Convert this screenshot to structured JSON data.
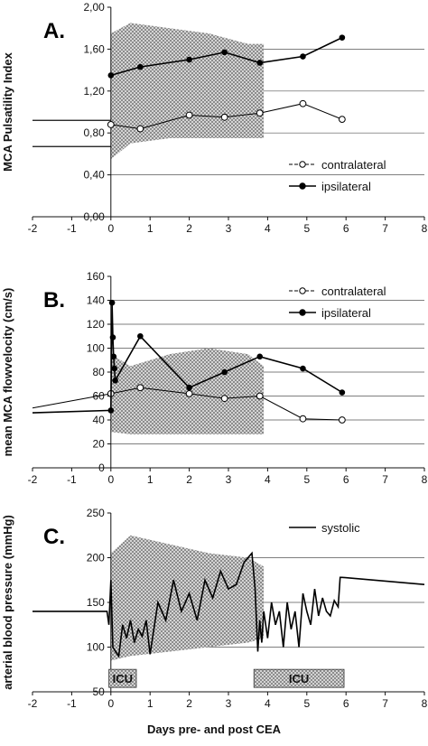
{
  "figure": {
    "shared_xlabel": "Days pre- and post CEA"
  },
  "chart_data": [
    {
      "panel": "A.",
      "type": "line",
      "ylabel": "MCA Pulsatility Index",
      "xlim": [
        -2,
        8
      ],
      "ylim": [
        0,
        2
      ],
      "xticks": [
        "-2",
        "-1",
        "0",
        "1",
        "2",
        "3",
        "4",
        "5",
        "6",
        "7",
        "8"
      ],
      "yticks": [
        "0,00",
        "0,40",
        "0,80",
        "1,20",
        "1,60",
        "2,00"
      ],
      "grid": "horizontal",
      "legend_position": "bottom-right",
      "series": [
        {
          "name": "contralateral",
          "marker": "open-circle",
          "x": [
            0,
            0.75,
            2,
            2.9,
            3.8,
            4.9,
            5.9
          ],
          "y": [
            0.88,
            0.84,
            0.97,
            0.95,
            0.99,
            1.08,
            0.93
          ]
        },
        {
          "name": "ipsilateral",
          "marker": "filled-circle",
          "x": [
            0,
            0.75,
            2,
            2.9,
            3.8,
            4.9,
            5.9
          ],
          "y": [
            1.35,
            1.43,
            1.5,
            1.57,
            1.47,
            1.53,
            1.71
          ]
        }
      ],
      "band": {
        "x": [
          0,
          0.5,
          1.5,
          2.5,
          3.5,
          3.9
        ],
        "lower": [
          0.55,
          0.7,
          0.75,
          0.75,
          0.75,
          0.75
        ],
        "upper": [
          1.75,
          1.85,
          1.8,
          1.75,
          1.65,
          1.65
        ]
      },
      "baselines": [
        {
          "from_x": -2,
          "to_x": 0,
          "y": 0.92
        },
        {
          "from_x": -2,
          "to_x": 0,
          "y": 0.67
        }
      ]
    },
    {
      "panel": "B.",
      "type": "line",
      "ylabel": "mean MCA flowvelocity (cm/s)",
      "xlim": [
        -2,
        8
      ],
      "ylim": [
        0,
        160
      ],
      "xticks": [
        "-2",
        "-1",
        "0",
        "1",
        "2",
        "3",
        "4",
        "5",
        "6",
        "7",
        "8"
      ],
      "yticks": [
        "0",
        "20",
        "40",
        "60",
        "80",
        "100",
        "120",
        "140",
        "160"
      ],
      "grid": "horizontal",
      "legend_position": "top-right",
      "series": [
        {
          "name": "contralateral",
          "marker": "open-circle",
          "x": [
            -2,
            0,
            0.75,
            2,
            2.9,
            3.8,
            4.9,
            5.9
          ],
          "y": [
            50,
            62,
            67,
            62,
            58,
            60,
            41,
            40
          ]
        },
        {
          "name": "ipsilateral",
          "marker": "filled-circle",
          "x": [
            -2,
            0,
            0.03,
            0.05,
            0.07,
            0.09,
            0.11,
            0.75,
            2,
            2.9,
            3.8,
            4.9,
            5.9
          ],
          "y": [
            46,
            48,
            138,
            109,
            93,
            83,
            73,
            110,
            67,
            80,
            93,
            83,
            63
          ]
        }
      ],
      "band": {
        "x": [
          0,
          0.5,
          1.5,
          2.5,
          3.5,
          3.9
        ],
        "lower": [
          30,
          28,
          28,
          28,
          28,
          28
        ],
        "upper": [
          95,
          85,
          95,
          100,
          95,
          85
        ]
      }
    },
    {
      "panel": "C.",
      "type": "line",
      "ylabel": "arterial blood pressure (mmHg)",
      "xlim": [
        -2,
        8
      ],
      "ylim": [
        50,
        250
      ],
      "xticks": [
        "-2",
        "-1",
        "0",
        "1",
        "2",
        "3",
        "4",
        "5",
        "6",
        "7",
        "8"
      ],
      "yticks": [
        "50",
        "100",
        "150",
        "200",
        "250"
      ],
      "grid": "horizontal",
      "legend_position": "top-right",
      "series": [
        {
          "name": "systolic",
          "marker": "none",
          "x": [
            -2,
            -0.1,
            -0.05,
            0,
            0.05,
            0.12,
            0.2,
            0.3,
            0.4,
            0.5,
            0.6,
            0.7,
            0.8,
            0.9,
            1.0,
            1.2,
            1.4,
            1.6,
            1.8,
            2.0,
            2.2,
            2.4,
            2.6,
            2.8,
            3.0,
            3.2,
            3.4,
            3.6,
            3.68,
            3.75,
            3.8,
            3.85,
            3.9,
            4.0,
            4.1,
            4.2,
            4.3,
            4.4,
            4.5,
            4.6,
            4.7,
            4.8,
            4.9,
            5.0,
            5.1,
            5.2,
            5.3,
            5.4,
            5.5,
            5.6,
            5.7,
            5.8,
            5.85,
            5.9,
            8
          ],
          "y": [
            140,
            140,
            125,
            175,
            100,
            95,
            90,
            125,
            110,
            130,
            105,
            120,
            112,
            130,
            92,
            150,
            130,
            175,
            140,
            160,
            130,
            175,
            155,
            185,
            165,
            170,
            195,
            205,
            165,
            95,
            130,
            105,
            140,
            110,
            150,
            125,
            140,
            100,
            150,
            120,
            140,
            100,
            160,
            140,
            125,
            165,
            135,
            155,
            140,
            135,
            152,
            145,
            178,
            178,
            170
          ]
        }
      ],
      "band": {
        "x": [
          0,
          0.5,
          1.5,
          2.5,
          3.5,
          3.9
        ],
        "lower": [
          85,
          90,
          95,
          100,
          105,
          110
        ],
        "upper": [
          205,
          225,
          215,
          205,
          200,
          190
        ]
      },
      "annotations": [
        {
          "text": "ICU",
          "x_from": -0.05,
          "x_to": 0.65,
          "y": 65
        },
        {
          "text": "ICU",
          "x_from": 3.65,
          "x_to": 5.95,
          "y": 65
        }
      ]
    }
  ]
}
